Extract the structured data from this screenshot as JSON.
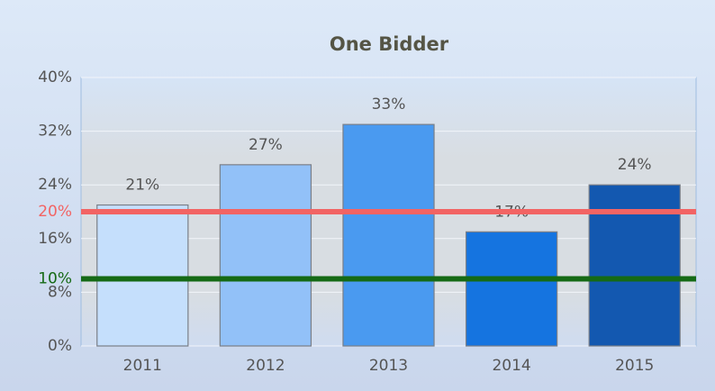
{
  "chart_data": {
    "type": "bar",
    "title": "One Bidder",
    "categories": [
      "2011",
      "2012",
      "2013",
      "2014",
      "2015"
    ],
    "values": [
      21,
      27,
      33,
      17,
      24
    ],
    "value_labels": [
      "21%",
      "27%",
      "33%",
      "17%",
      "24%"
    ],
    "colors": [
      "#c5dffc",
      "#92c1f8",
      "#4a9af0",
      "#1574e0",
      "#1358b0"
    ],
    "ylim": [
      0,
      40
    ],
    "yticks": [
      {
        "value": 0,
        "label": "0%"
      },
      {
        "value": 8,
        "label": "8%"
      },
      {
        "value": 16,
        "label": "16%"
      },
      {
        "value": 24,
        "label": "24%"
      },
      {
        "value": 32,
        "label": "32%"
      },
      {
        "value": 40,
        "label": "40%"
      }
    ],
    "grid": true,
    "reference_lines": [
      {
        "value": 20,
        "label": "20%",
        "color": "#f26464"
      },
      {
        "value": 10,
        "label": "10%",
        "color": "#156a15"
      }
    ]
  }
}
